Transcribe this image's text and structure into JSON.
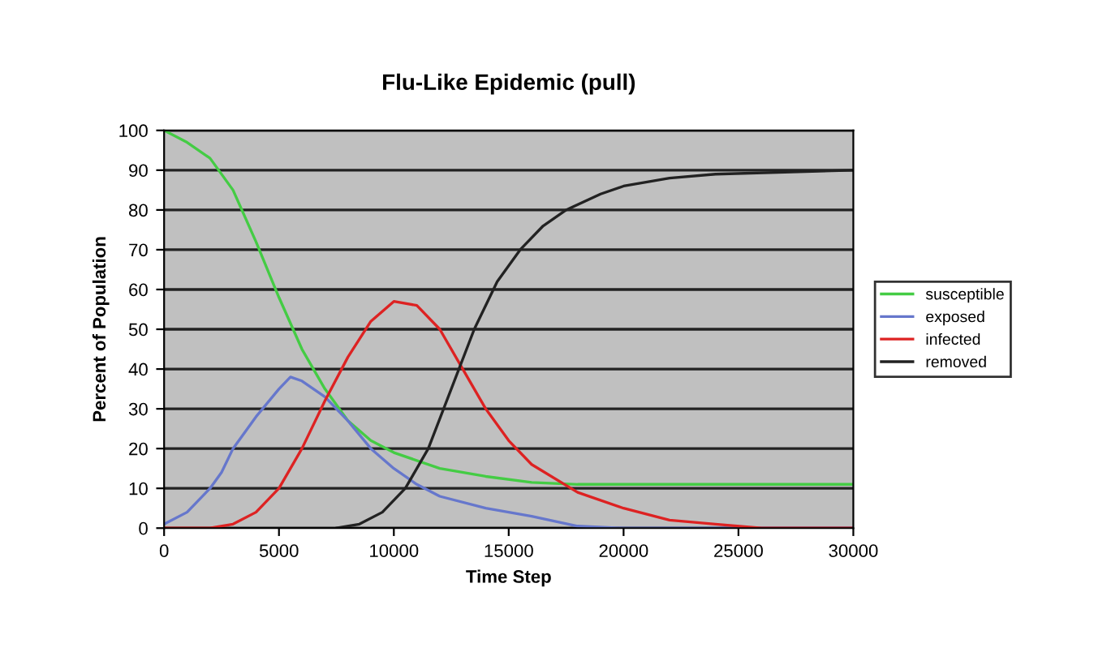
{
  "chart_data": {
    "type": "line",
    "title": "Flu-Like Epidemic (pull)",
    "xlabel": "Time Step",
    "ylabel": "Percent of Population",
    "xlim": [
      0,
      30000
    ],
    "xticks": [
      0,
      5000,
      10000,
      15000,
      20000,
      25000,
      30000
    ],
    "ylim": [
      0,
      100
    ],
    "yticks": [
      0,
      10,
      20,
      30,
      40,
      50,
      60,
      70,
      80,
      90,
      100
    ],
    "grid": "y",
    "legend": "right",
    "marker": "none",
    "line_style": "solid",
    "series": [
      {
        "name": "susceptible",
        "color": "#44cc44",
        "x": [
          0,
          1000,
          2000,
          3000,
          4000,
          5000,
          6000,
          7000,
          8000,
          9000,
          10000,
          12000,
          14000,
          16000,
          18000,
          30000
        ],
        "values": [
          100,
          97,
          93,
          85,
          72,
          58,
          45,
          35,
          27,
          22,
          19,
          15,
          13,
          11.5,
          11,
          11
        ]
      },
      {
        "name": "exposed",
        "color": "#6677cc",
        "x": [
          0,
          1000,
          2000,
          2500,
          3000,
          4000,
          5000,
          5500,
          6000,
          7000,
          8000,
          9000,
          10000,
          11000,
          12000,
          14000,
          16000,
          18000,
          20000,
          30000
        ],
        "values": [
          1,
          4,
          10,
          14,
          20,
          28,
          35,
          38,
          37,
          33,
          27,
          20,
          15,
          11,
          8,
          5,
          3,
          0.5,
          0,
          0
        ]
      },
      {
        "name": "infected",
        "color": "#dd2222",
        "x": [
          0,
          2000,
          3000,
          4000,
          5000,
          6000,
          7000,
          8000,
          9000,
          10000,
          11000,
          12000,
          13000,
          14000,
          15000,
          16000,
          18000,
          20000,
          22000,
          24000,
          26000,
          30000
        ],
        "values": [
          0,
          0,
          1,
          4,
          10,
          20,
          32,
          43,
          52,
          57,
          56,
          50,
          40,
          30,
          22,
          16,
          9,
          5,
          2,
          1,
          0,
          0
        ]
      },
      {
        "name": "removed",
        "color": "#222222",
        "x": [
          7500,
          8500,
          9500,
          10500,
          11500,
          12500,
          13500,
          14500,
          15500,
          16500,
          17500,
          19000,
          20000,
          22000,
          24000,
          30000
        ],
        "values": [
          0,
          1,
          4,
          10,
          20,
          35,
          50,
          62,
          70,
          76,
          80,
          84,
          86,
          88,
          89,
          90
        ]
      }
    ]
  }
}
